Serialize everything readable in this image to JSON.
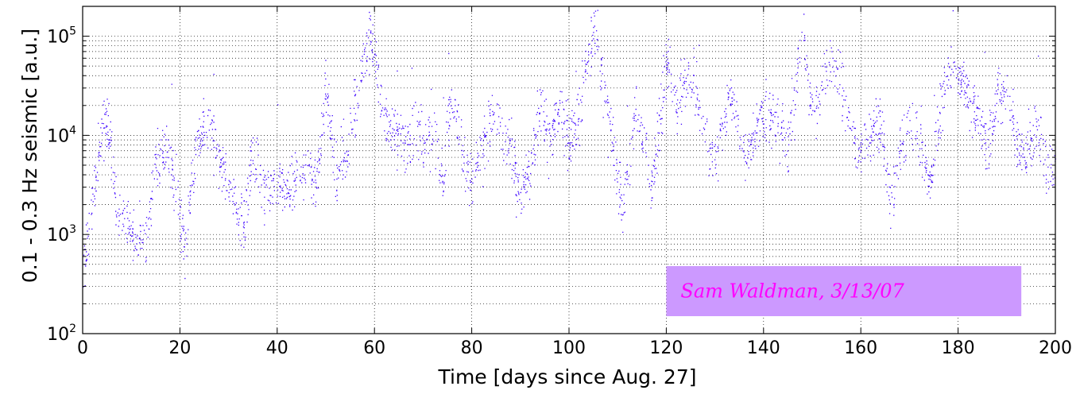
{
  "chart_data": {
    "type": "scatter",
    "xlabel": "Time [days since Aug. 27]",
    "ylabel": "0.1 - 0.3 Hz seismic [a.u.]",
    "xlim": [
      0,
      200
    ],
    "ylim": [
      100,
      200000
    ],
    "yscale": "log",
    "x_ticks": [
      0,
      20,
      40,
      60,
      80,
      100,
      120,
      140,
      160,
      180,
      200
    ],
    "y_ticks": [
      {
        "value": 100,
        "base": "10",
        "exp": "2"
      },
      {
        "value": 1000,
        "base": "10",
        "exp": "3"
      },
      {
        "value": 10000,
        "base": "10",
        "exp": "4"
      },
      {
        "value": 100000,
        "base": "10",
        "exp": "5"
      }
    ],
    "grid": true,
    "marker_color": "#3b00ff",
    "annotation": {
      "text": "Sam Waldman, 3/13/07",
      "x_range": [
        120,
        193
      ],
      "y_range": [
        150,
        480
      ],
      "background": "#cc99ff",
      "color": "#ff00ff"
    },
    "series": [
      {
        "x": [
          0,
          2,
          4,
          5,
          7,
          9,
          11,
          13,
          15,
          17,
          19,
          21,
          23,
          26,
          28,
          30,
          33,
          35,
          37,
          40,
          43,
          46,
          48,
          50,
          52,
          54,
          56,
          59,
          60,
          62,
          64,
          66,
          68,
          70,
          72,
          74,
          76,
          78,
          80,
          82,
          84,
          86,
          88,
          90,
          92,
          94,
          96,
          98,
          100,
          102,
          105,
          107,
          109,
          111,
          114,
          117,
          120,
          122,
          124,
          126,
          128,
          130,
          133,
          136,
          138,
          140,
          142,
          145,
          148,
          150,
          152,
          154,
          156,
          158,
          160,
          162,
          164,
          166,
          168,
          170,
          172,
          174,
          176,
          178,
          180,
          182,
          184,
          186,
          188,
          190,
          192,
          194,
          196,
          198,
          200
        ],
        "values": [
          400,
          2500,
          12000,
          13000,
          2000,
          1200,
          800,
          1000,
          5000,
          8000,
          3000,
          800,
          6000,
          15000,
          5000,
          3000,
          1200,
          7000,
          3000,
          3000,
          3000,
          6000,
          3000,
          30000,
          4000,
          6000,
          20000,
          100000,
          60000,
          15000,
          10000,
          8000,
          10000,
          9000,
          12000,
          4000,
          30000,
          6000,
          3000,
          8000,
          15000,
          10000,
          8000,
          2500,
          5000,
          20000,
          8000,
          20000,
          8000,
          15000,
          150000,
          30000,
          8000,
          2000,
          20000,
          3000,
          60000,
          20000,
          40000,
          30000,
          10000,
          5000,
          30000,
          6000,
          10000,
          15000,
          15000,
          8000,
          120000,
          15000,
          30000,
          60000,
          30000,
          12000,
          6000,
          10000,
          15000,
          2000,
          8000,
          15000,
          10000,
          3000,
          15000,
          60000,
          40000,
          25000,
          15000,
          8000,
          25000,
          30000,
          8000,
          6000,
          15000,
          5000,
          6000
        ]
      }
    ]
  }
}
